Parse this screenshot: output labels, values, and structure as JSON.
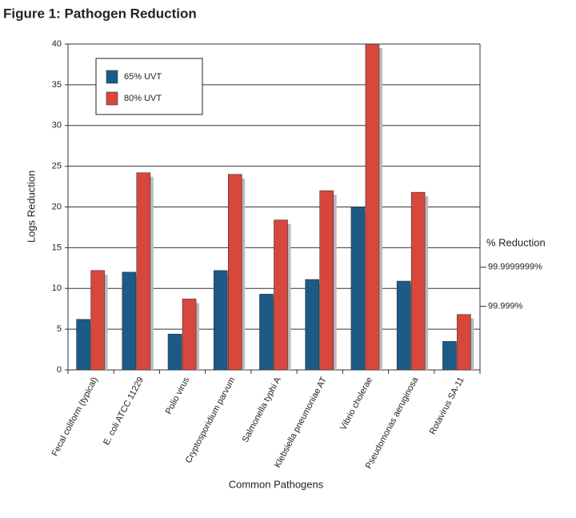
{
  "chart_data": {
    "type": "bar",
    "title": "Figure 1:  Pathogen Reduction",
    "x_label": "Common Pathogens",
    "y_label": "Logs Reduction",
    "categories": [
      "Fecal coliform (typical)",
      "E. coli ATCC 11229",
      "Polio virus",
      "Cryptosporidium parvum",
      "Salmonella typhi A",
      "Klebsiella pneumoniae AT",
      "Vibrio cholerae",
      "Pseudomonas aeruginosa",
      "Rotavirus SA-11"
    ],
    "series": [
      {
        "name": "65% UVT",
        "color": "#1d5a86",
        "values": [
          6.2,
          12,
          4.4,
          12.2,
          9.3,
          11.1,
          20,
          10.9,
          3.5
        ]
      },
      {
        "name": "80% UVT",
        "color": "#d8473d",
        "values": [
          12.2,
          24.2,
          8.7,
          24,
          18.4,
          22,
          40,
          21.8,
          6.8
        ]
      }
    ],
    "ylim": [
      0,
      40
    ],
    "yticks": [
      0,
      5,
      10,
      15,
      20,
      25,
      30,
      35,
      40
    ],
    "grid": true,
    "legend": "upper left",
    "reduction_title": "% Reduction",
    "reduction_marks": [
      {
        "value": 12.6,
        "label": "99.9999999%"
      },
      {
        "value": 7.8,
        "label": "99.999%"
      }
    ]
  }
}
